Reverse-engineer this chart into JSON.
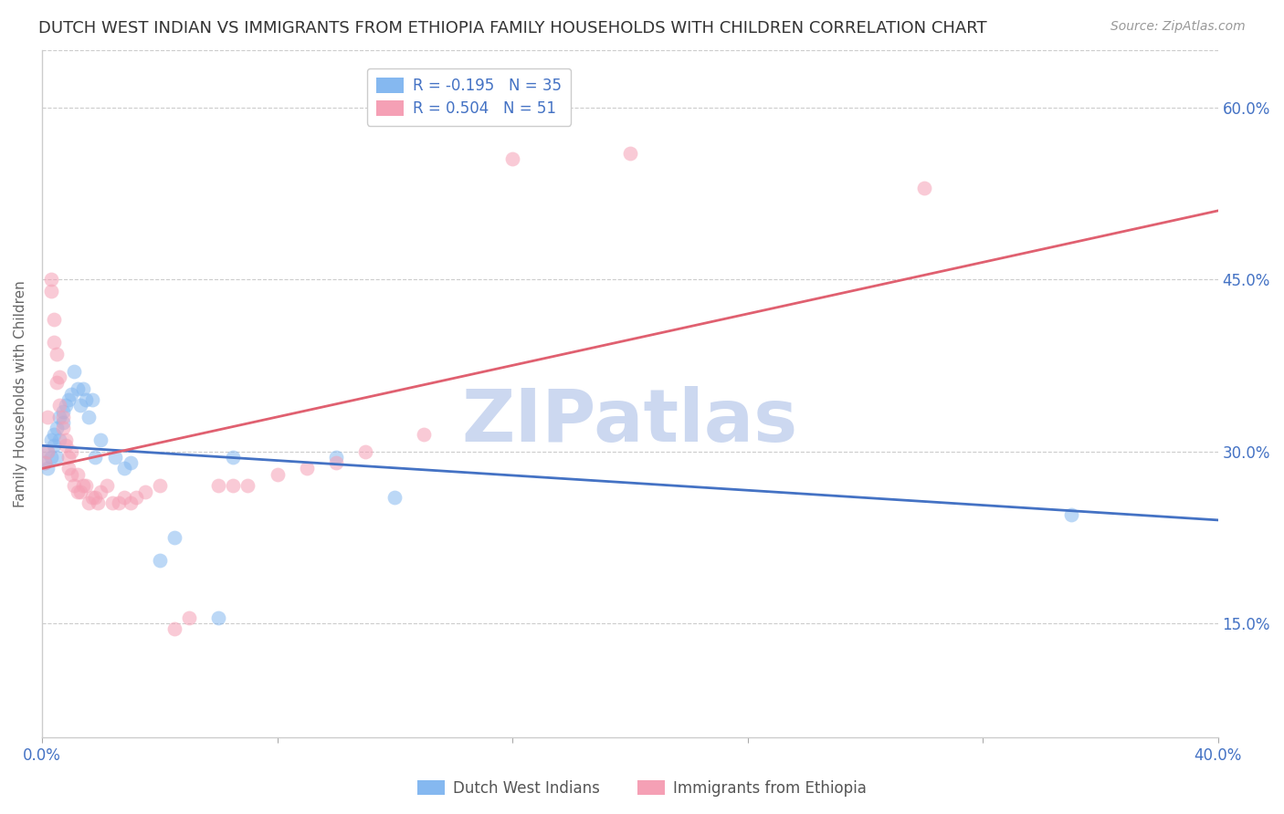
{
  "title": "DUTCH WEST INDIAN VS IMMIGRANTS FROM ETHIOPIA FAMILY HOUSEHOLDS WITH CHILDREN CORRELATION CHART",
  "source": "Source: ZipAtlas.com",
  "ylabel": "Family Households with Children",
  "watermark": "ZIPatlas",
  "xlim": [
    0.0,
    0.4
  ],
  "ylim": [
    0.05,
    0.65
  ],
  "yticks": [
    0.15,
    0.3,
    0.45,
    0.6
  ],
  "ytick_labels": [
    "15.0%",
    "30.0%",
    "45.0%",
    "60.0%"
  ],
  "blue_R": -0.195,
  "blue_N": 35,
  "pink_R": 0.504,
  "pink_N": 51,
  "blue_scatter": [
    [
      0.001,
      0.29
    ],
    [
      0.002,
      0.3
    ],
    [
      0.002,
      0.285
    ],
    [
      0.003,
      0.31
    ],
    [
      0.003,
      0.295
    ],
    [
      0.004,
      0.315
    ],
    [
      0.004,
      0.305
    ],
    [
      0.005,
      0.32
    ],
    [
      0.005,
      0.295
    ],
    [
      0.006,
      0.33
    ],
    [
      0.006,
      0.31
    ],
    [
      0.007,
      0.325
    ],
    [
      0.007,
      0.335
    ],
    [
      0.008,
      0.34
    ],
    [
      0.009,
      0.345
    ],
    [
      0.01,
      0.35
    ],
    [
      0.011,
      0.37
    ],
    [
      0.012,
      0.355
    ],
    [
      0.013,
      0.34
    ],
    [
      0.014,
      0.355
    ],
    [
      0.015,
      0.345
    ],
    [
      0.016,
      0.33
    ],
    [
      0.017,
      0.345
    ],
    [
      0.018,
      0.295
    ],
    [
      0.02,
      0.31
    ],
    [
      0.025,
      0.295
    ],
    [
      0.028,
      0.285
    ],
    [
      0.03,
      0.29
    ],
    [
      0.04,
      0.205
    ],
    [
      0.045,
      0.225
    ],
    [
      0.06,
      0.155
    ],
    [
      0.065,
      0.295
    ],
    [
      0.1,
      0.295
    ],
    [
      0.12,
      0.26
    ],
    [
      0.35,
      0.245
    ]
  ],
  "pink_scatter": [
    [
      0.001,
      0.29
    ],
    [
      0.002,
      0.33
    ],
    [
      0.002,
      0.3
    ],
    [
      0.003,
      0.45
    ],
    [
      0.003,
      0.44
    ],
    [
      0.004,
      0.415
    ],
    [
      0.004,
      0.395
    ],
    [
      0.005,
      0.385
    ],
    [
      0.005,
      0.36
    ],
    [
      0.006,
      0.365
    ],
    [
      0.006,
      0.34
    ],
    [
      0.007,
      0.33
    ],
    [
      0.007,
      0.32
    ],
    [
      0.008,
      0.31
    ],
    [
      0.008,
      0.305
    ],
    [
      0.009,
      0.295
    ],
    [
      0.009,
      0.285
    ],
    [
      0.01,
      0.3
    ],
    [
      0.01,
      0.28
    ],
    [
      0.011,
      0.27
    ],
    [
      0.012,
      0.28
    ],
    [
      0.012,
      0.265
    ],
    [
      0.013,
      0.265
    ],
    [
      0.014,
      0.27
    ],
    [
      0.015,
      0.27
    ],
    [
      0.016,
      0.255
    ],
    [
      0.017,
      0.26
    ],
    [
      0.018,
      0.26
    ],
    [
      0.019,
      0.255
    ],
    [
      0.02,
      0.265
    ],
    [
      0.022,
      0.27
    ],
    [
      0.024,
      0.255
    ],
    [
      0.026,
      0.255
    ],
    [
      0.028,
      0.26
    ],
    [
      0.03,
      0.255
    ],
    [
      0.032,
      0.26
    ],
    [
      0.035,
      0.265
    ],
    [
      0.04,
      0.27
    ],
    [
      0.045,
      0.145
    ],
    [
      0.05,
      0.155
    ],
    [
      0.06,
      0.27
    ],
    [
      0.065,
      0.27
    ],
    [
      0.07,
      0.27
    ],
    [
      0.08,
      0.28
    ],
    [
      0.09,
      0.285
    ],
    [
      0.1,
      0.29
    ],
    [
      0.11,
      0.3
    ],
    [
      0.13,
      0.315
    ],
    [
      0.16,
      0.555
    ],
    [
      0.2,
      0.56
    ],
    [
      0.3,
      0.53
    ]
  ],
  "blue_color": "#85b8f0",
  "pink_color": "#f5a0b5",
  "blue_line_color": "#4472c4",
  "pink_line_color": "#e06070",
  "legend_blue_label": "Dutch West Indians",
  "legend_pink_label": "Immigrants from Ethiopia",
  "marker_size": 130,
  "marker_alpha": 0.55,
  "title_fontsize": 13,
  "source_fontsize": 10,
  "tick_color": "#4472c4",
  "grid_color": "#cccccc",
  "background_color": "#ffffff",
  "watermark_color": "#ccd8f0",
  "watermark_fontsize": 58
}
